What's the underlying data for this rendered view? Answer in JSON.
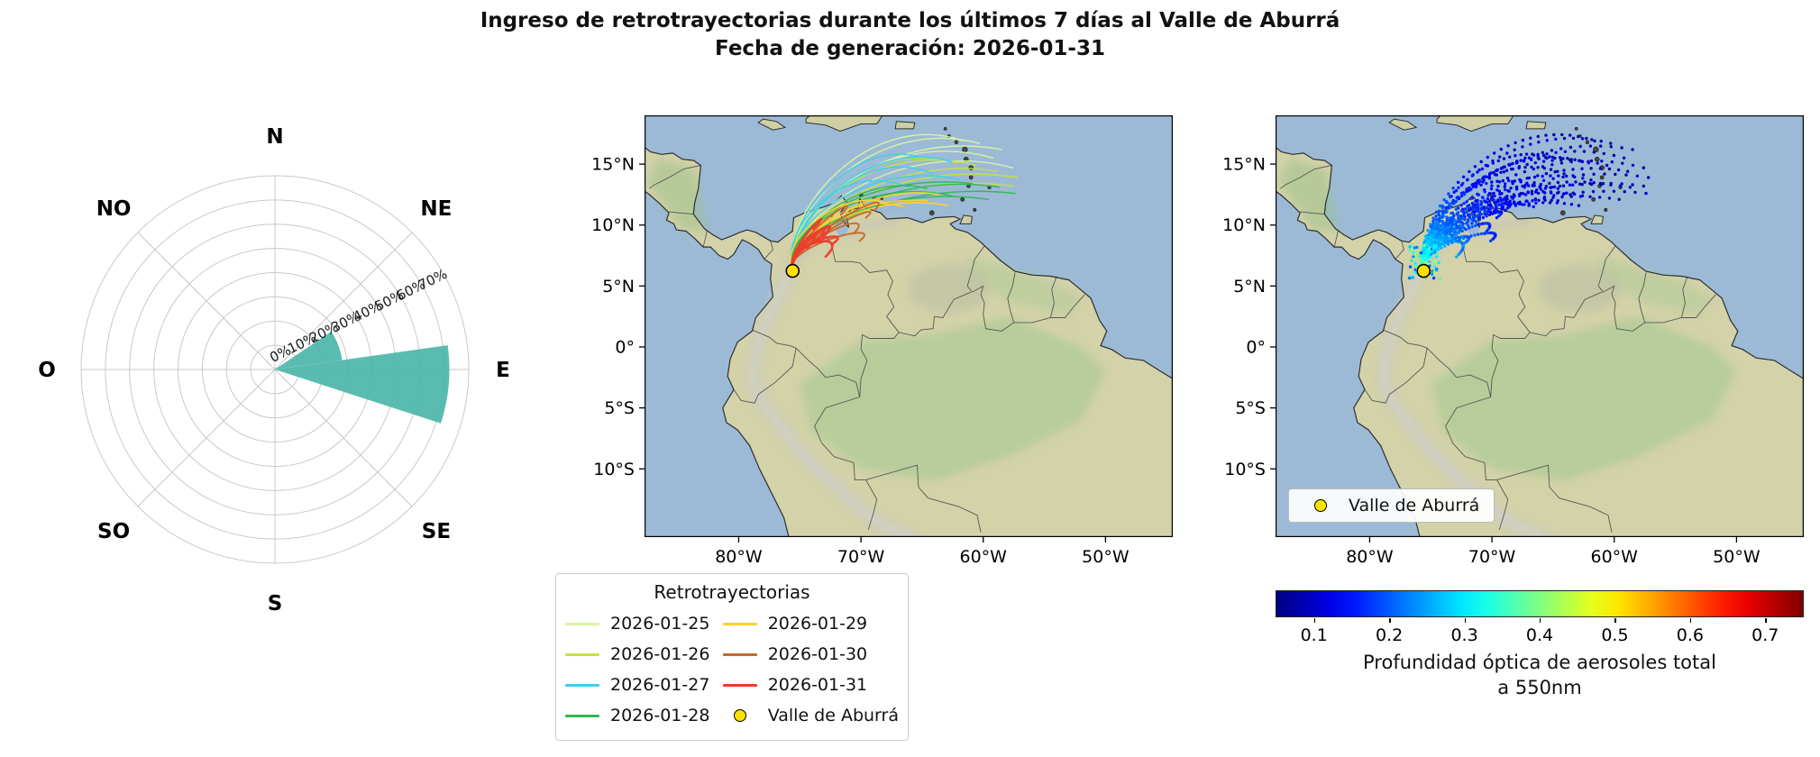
{
  "title": {
    "line1": "Ingreso de retrotrayectorias durante los últimos 7 días al Valle de Aburrá",
    "line2": "Fecha de generación: 2026-01-31"
  },
  "chart_data": [
    {
      "type": "windrose",
      "direction_labels": [
        "N",
        "NE",
        "E",
        "SE",
        "S",
        "SO",
        "O",
        "NO"
      ],
      "radial_ticks": [
        "0%",
        "10%",
        "20%",
        "30%",
        "40%",
        "50%",
        "60%",
        "70%"
      ],
      "r_max_pct": 80,
      "tick_axis_deg": 64,
      "color": "#4cb6a9",
      "sectors": [
        {
          "start_deg": 56,
          "end_deg": 82,
          "value_pct": 28
        },
        {
          "start_deg": 82,
          "end_deg": 108,
          "value_pct": 72
        }
      ]
    },
    {
      "type": "map-trajectories",
      "extent": {
        "lon_min": -87.7,
        "lon_max": -44.5,
        "lat_min": -15.6,
        "lat_max": 19.0
      },
      "x_tick_labels": [
        "80°W",
        "70°W",
        "60°W",
        "50°W"
      ],
      "x_tick_lons": [
        -80,
        -70,
        -60,
        -50
      ],
      "y_tick_labels": [
        "15°N",
        "10°N",
        "5°N",
        "0°",
        "5°S",
        "10°S"
      ],
      "y_tick_lats": [
        15,
        10,
        5,
        0,
        -5,
        -10
      ],
      "legend_title": "Retrotrayectorias",
      "origin": {
        "label": "Valle de Aburrá",
        "lon": -75.59,
        "lat": 6.24,
        "color": "#ffe100"
      },
      "series": [
        {
          "name": "2026-01-25",
          "color": "#d8f5a0",
          "width": 1.4,
          "arc": 2.4,
          "hook": false,
          "ends": [
            [
              -58.5,
              16.2
            ],
            [
              -57.6,
              14.7
            ],
            [
              -60.3,
              16.7
            ],
            [
              -59.2,
              15.5
            ],
            [
              -61.6,
              16.9
            ]
          ]
        },
        {
          "name": "2026-01-26",
          "color": "#c8e13c",
          "width": 1.4,
          "arc": 1.8,
          "hook": false,
          "ends": [
            [
              -57.2,
              13.9
            ],
            [
              -58.9,
              14.4
            ],
            [
              -60.6,
              14.9
            ],
            [
              -57.6,
              13.2
            ],
            [
              -62.1,
              15.1
            ]
          ]
        },
        {
          "name": "2026-01-27",
          "color": "#3ecdf0",
          "width": 1.5,
          "arc": 2.0,
          "hook": false,
          "ends": [
            [
              -62.6,
              15.2
            ],
            [
              -64.1,
              14.2
            ],
            [
              -66.1,
              13.1
            ],
            [
              -61.9,
              13.7
            ],
            [
              -65.3,
              15.6
            ]
          ]
        },
        {
          "name": "2026-01-28",
          "color": "#2fb951",
          "width": 1.5,
          "arc": 1.2,
          "hook": false,
          "ends": [
            [
              -57.4,
              12.6
            ],
            [
              -58.7,
              13.1
            ],
            [
              -60.9,
              13.4
            ],
            [
              -62.6,
              12.4
            ],
            [
              -59.6,
              12.1
            ],
            [
              -64.6,
              13.0
            ]
          ]
        },
        {
          "name": "2026-01-29",
          "color": "#ffd22f",
          "width": 1.6,
          "arc": 0.9,
          "hook": false,
          "ends": [
            [
              -62.9,
              11.6
            ],
            [
              -64.6,
              12.0
            ],
            [
              -66.6,
              11.5
            ],
            [
              -63.6,
              12.5
            ],
            [
              -68.2,
              11.9
            ]
          ]
        },
        {
          "name": "2026-01-30",
          "color": "#c8682b",
          "width": 2.0,
          "arc": 0.8,
          "hook": true,
          "ends": [
            [
              -69.6,
              10.6
            ],
            [
              -70.6,
              9.3
            ],
            [
              -68.9,
              11.2
            ],
            [
              -71.6,
              10.9
            ],
            [
              -70.1,
              8.7
            ]
          ]
        },
        {
          "name": "2026-01-31",
          "color": "#f03a2d",
          "width": 2.6,
          "arc": 0.6,
          "hook": true,
          "ends": [
            [
              -73.1,
              9.0
            ],
            [
              -72.4,
              8.4
            ],
            [
              -73.9,
              9.7
            ],
            [
              -74.4,
              8.1
            ],
            [
              -72.9,
              7.4
            ],
            [
              -73.6,
              8.7
            ]
          ]
        }
      ]
    },
    {
      "type": "map-aod",
      "extent": {
        "lon_min": -87.7,
        "lon_max": -44.5,
        "lat_min": -15.6,
        "lat_max": 19.0
      },
      "x_tick_labels": [
        "80°W",
        "70°W",
        "60°W",
        "50°W"
      ],
      "x_tick_lons": [
        -80,
        -70,
        -60,
        -50
      ],
      "y_tick_labels": [
        "15°N",
        "10°N",
        "5°N",
        "0°",
        "5°S",
        "10°S"
      ],
      "y_tick_lats": [
        15,
        10,
        5,
        0,
        -5,
        -10
      ],
      "legend_label": "Valle de Aburrá",
      "marker_color": "#ffe100",
      "aod_model": {
        "base": 0.075,
        "amp": 0.3,
        "scale_deg": 5.5
      },
      "colorbar": {
        "cmap": "jet",
        "vmin": 0.05,
        "vmax": 0.75,
        "ticks": [
          0.1,
          0.2,
          0.3,
          0.4,
          0.5,
          0.6,
          0.7
        ],
        "label_line1": "Profundidad óptica de aerosoles total",
        "label_line2": "a 550nm"
      }
    }
  ]
}
